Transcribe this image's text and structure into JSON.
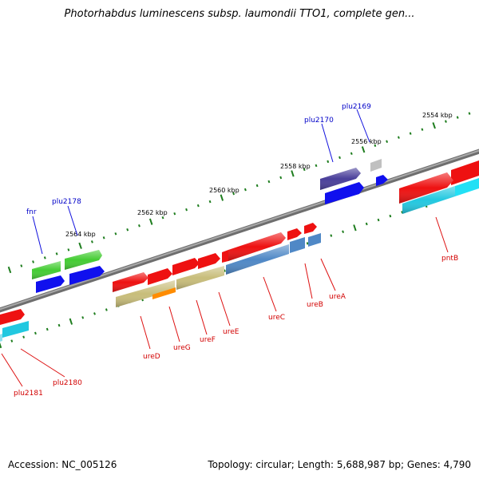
{
  "title": "Photorhabdus luminescens subsp. laumondii TTO1, complete gen...",
  "footer": {
    "accession": "Accession: NC_005126",
    "topology": "Topology: circular; Length: 5,688,987 bp; Genes: 4,790"
  },
  "ticks": [
    {
      "label": "2554 kbp"
    },
    {
      "label": "2556 kbp"
    },
    {
      "label": "2558 kbp"
    },
    {
      "label": "2560 kbp"
    },
    {
      "label": "2562 kbp"
    },
    {
      "label": "2564 kbp"
    }
  ],
  "genes_blue_labels": [
    {
      "label": "plu2169"
    },
    {
      "label": "plu2170"
    },
    {
      "label": "plu2178"
    },
    {
      "label": "fnr"
    }
  ],
  "genes_red_labels": [
    {
      "label": "pntB"
    },
    {
      "label": "ureA"
    },
    {
      "label": "ureB"
    },
    {
      "label": "ureC"
    },
    {
      "label": "ureE"
    },
    {
      "label": "ureF"
    },
    {
      "label": "ureG"
    },
    {
      "label": "ureD"
    },
    {
      "label": "plu2180"
    },
    {
      "label": "plu2181"
    }
  ],
  "colors": {
    "backbone": "#8a8a8a",
    "tick_green": "#1e7d1e",
    "label_blue": "#0000c8",
    "label_red": "#d20000",
    "cds_red": "#ee1111",
    "cds_green": "#44cc33",
    "cds_blue": "#1010ee",
    "cds_navy": "#4a3f9a",
    "cds_steel": "#4f88c6",
    "cds_cyan": "#22d8f0",
    "cds_teal": "#22c2d4",
    "cds_olive": "#c8bd7a",
    "cds_orange": "#ff8c00",
    "cds_gray": "#c8c8c8"
  }
}
